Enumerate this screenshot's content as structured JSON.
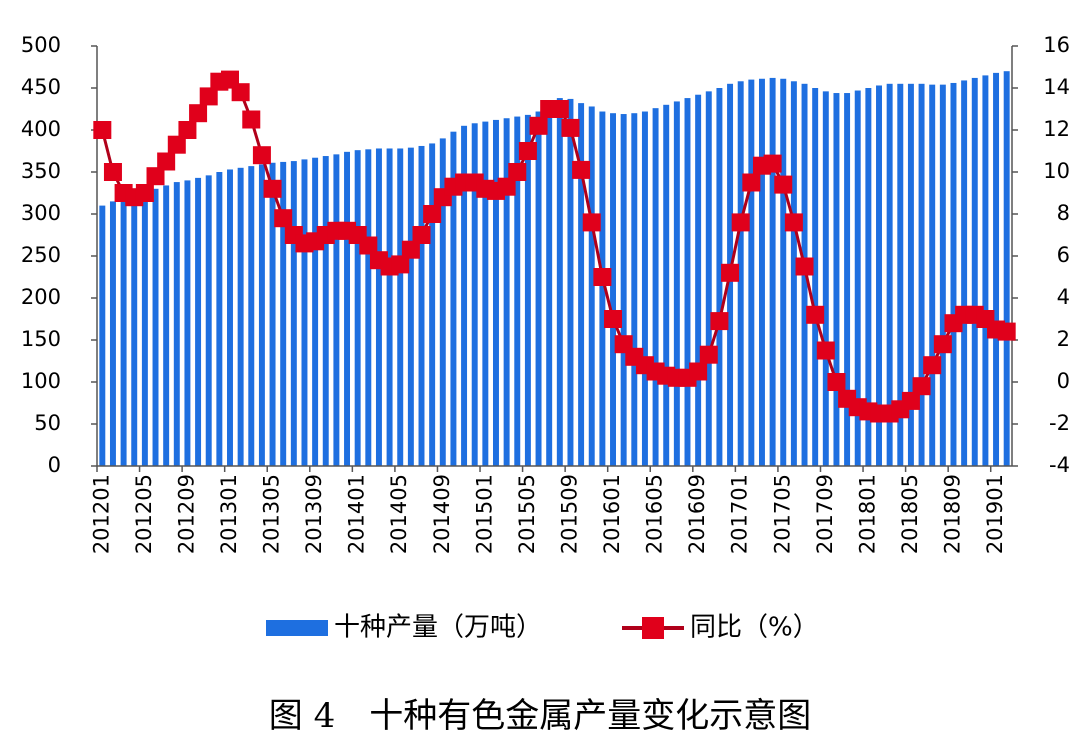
{
  "chart_data": {
    "type": "bar_line",
    "caption": "图 4　十种有色金属产量变化示意图",
    "categories": [
      "201201",
      null,
      null,
      null,
      "201205",
      null,
      null,
      null,
      "201209",
      null,
      null,
      null,
      "201301",
      null,
      null,
      null,
      "201305",
      null,
      null,
      null,
      "201309",
      null,
      null,
      null,
      "201401",
      null,
      null,
      null,
      "201405",
      null,
      null,
      null,
      "201409",
      null,
      null,
      null,
      "201501",
      null,
      null,
      null,
      "201505",
      null,
      null,
      null,
      "201509",
      null,
      null,
      null,
      "201601",
      null,
      null,
      null,
      "201605",
      null,
      null,
      null,
      "201609",
      null,
      null,
      null,
      "201701",
      null,
      null,
      null,
      "201705",
      null,
      null,
      null,
      "201709",
      null,
      null,
      null,
      "201801",
      null,
      null,
      null,
      "201805",
      null,
      null,
      null,
      "201809",
      null,
      null,
      null,
      "201901",
      null
    ],
    "series": [
      {
        "name": "十种产量（万吨）",
        "color": "#1e6fe0",
        "kind": "bar",
        "axis": "y",
        "values": [
          310,
          315,
          318,
          322,
          326,
          330,
          334,
          338,
          340,
          343,
          346,
          350,
          353,
          355,
          357,
          359,
          361,
          362,
          363,
          365,
          367,
          369,
          371,
          374,
          376,
          377,
          378,
          378,
          378,
          379,
          381,
          384,
          390,
          398,
          405,
          408,
          410,
          412,
          414,
          416,
          418,
          422,
          430,
          438,
          437,
          432,
          428,
          422,
          420,
          419,
          420,
          422,
          426,
          430,
          434,
          438,
          442,
          446,
          450,
          455,
          458,
          460,
          461,
          462,
          461,
          458,
          455,
          450,
          446,
          444,
          444,
          447,
          450,
          453,
          455,
          455,
          455,
          455,
          454,
          454,
          456,
          459,
          462,
          465,
          468,
          470
        ]
      },
      {
        "name": "同比（%）",
        "color": "#e0001b",
        "kind": "line",
        "axis": "y2",
        "values": [
          12,
          10,
          9,
          8.8,
          9,
          9.8,
          10.5,
          11.3,
          12,
          12.8,
          13.6,
          14.3,
          14.4,
          13.8,
          12.5,
          10.8,
          9.2,
          7.8,
          7,
          6.6,
          6.7,
          7,
          7.2,
          7.2,
          7,
          6.5,
          5.8,
          5.5,
          5.6,
          6.3,
          7,
          8,
          8.8,
          9.3,
          9.5,
          9.5,
          9.2,
          9.1,
          9.3,
          10,
          11,
          12.2,
          13,
          13,
          12.1,
          10.1,
          7.6,
          5,
          3,
          1.8,
          1.2,
          0.8,
          0.5,
          0.3,
          0.2,
          0.2,
          0.5,
          1.3,
          2.9,
          5.2,
          7.6,
          9.5,
          10.3,
          10.4,
          9.4,
          7.6,
          5.5,
          3.2,
          1.5,
          0,
          -0.8,
          -1.2,
          -1.4,
          -1.5,
          -1.5,
          -1.3,
          -0.9,
          -0.2,
          0.8,
          1.8,
          2.8,
          3.2,
          3.2,
          3,
          2.5,
          2.4
        ]
      }
    ],
    "ylim": [
      0,
      500
    ],
    "yticks": [
      0,
      50,
      100,
      150,
      200,
      250,
      300,
      350,
      400,
      450,
      500
    ],
    "y2lim": [
      -4,
      16
    ],
    "y2ticks": [
      -4,
      -2,
      0,
      2,
      4,
      6,
      8,
      10,
      12,
      14,
      16
    ],
    "legend": "bottom"
  }
}
